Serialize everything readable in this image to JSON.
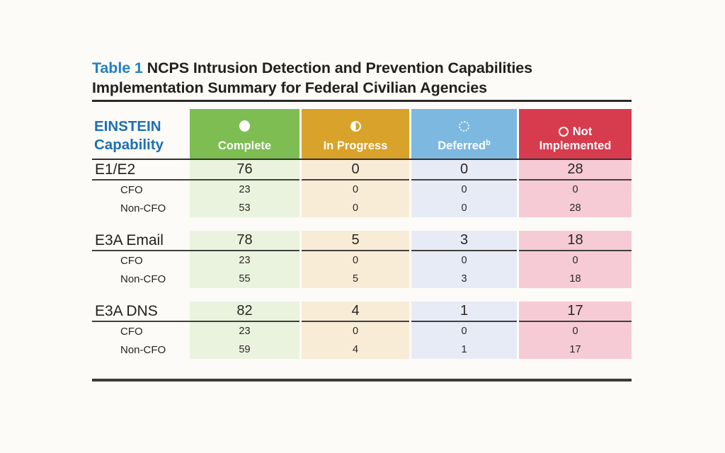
{
  "page": {
    "title_prefix": "Table 1",
    "title_rest": " NCPS Intrusion Detection and Prevention Capabilities Implementation Summary for Federal Civilian Agencies"
  },
  "colors": {
    "accent_blue_text": "#1c70b4",
    "complete_green": "#7dbd52",
    "in_progress_gold": "#d9a22a",
    "deferred_blue": "#7db8e0",
    "not_implemented_red": "#d63b4e",
    "tint_green": "#eaf3de",
    "tint_gold": "#f8ecd7",
    "tint_blue": "#e7ebf6",
    "tint_pink": "#f6cbd5"
  },
  "table": {
    "capability_header": {
      "line1": "EINSTEIN",
      "line2": "Capability"
    },
    "columns": [
      {
        "label": "Complete",
        "icon": "filled-circle-icon",
        "color": "#7dbd52"
      },
      {
        "label": "In Progress",
        "icon": "half-filled-circle-icon",
        "color": "#d9a22a"
      },
      {
        "label": "Deferred",
        "footnote": "b",
        "icon": "dotted-circle-icon",
        "color": "#7db8e0"
      },
      {
        "label_line1": "Not",
        "label_line2": "Implemented",
        "icon": "empty-circle-icon",
        "color": "#d63b4e"
      }
    ],
    "sections": [
      {
        "name": "E1/E2",
        "values": [
          "76",
          "0",
          "0",
          "28"
        ],
        "subrows": [
          {
            "name": "CFO",
            "values": [
              "23",
              "0",
              "0",
              "0"
            ]
          },
          {
            "name": "Non-CFO",
            "values": [
              "53",
              "0",
              "0",
              "28"
            ]
          }
        ]
      },
      {
        "name": "E3A Email",
        "values": [
          "78",
          "5",
          "3",
          "18"
        ],
        "subrows": [
          {
            "name": "CFO",
            "values": [
              "23",
              "0",
              "0",
              "0"
            ]
          },
          {
            "name": "Non-CFO",
            "values": [
              "55",
              "5",
              "3",
              "18"
            ]
          }
        ]
      },
      {
        "name": "E3A DNS",
        "values": [
          "82",
          "4",
          "1",
          "17"
        ],
        "subrows": [
          {
            "name": "CFO",
            "values": [
              "23",
              "0",
              "0",
              "0"
            ]
          },
          {
            "name": "Non-CFO",
            "values": [
              "59",
              "4",
              "1",
              "17"
            ]
          }
        ]
      }
    ]
  }
}
